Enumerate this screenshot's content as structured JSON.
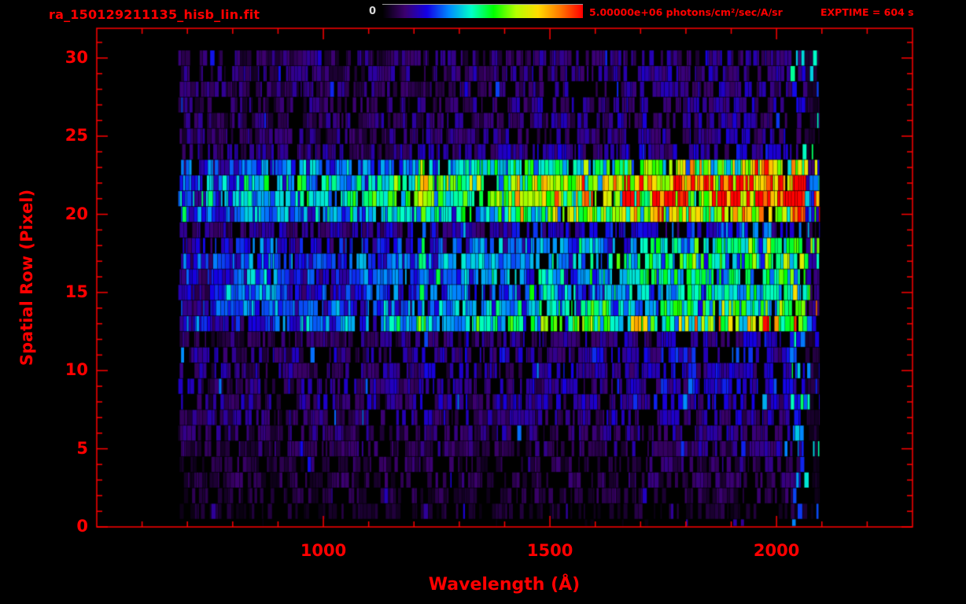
{
  "header": {
    "title": "ra_150129211135_hisb_lin.fit",
    "colorbar_min": "0",
    "colorbar_max": "5.00000e+06 photons/cm²/sec/A/sr",
    "exptime": "EXPTIME = 604 s"
  },
  "colors": {
    "background": "#000000",
    "accent": "#ff0000",
    "colorbar_min_label": "#d8d8d8"
  },
  "chart_data": {
    "type": "heatmap",
    "title": "ra_150129211135_hisb_lin.fit",
    "xlabel": "Wavelength (Å)",
    "ylabel": "Spatial Row (Pixel)",
    "xlim": [
      500,
      2300
    ],
    "ylim": [
      0,
      31.9
    ],
    "x_ticks": [
      1000,
      1500,
      2000
    ],
    "x_minor_step": 100,
    "y_ticks": [
      0,
      5,
      10,
      15,
      20,
      25,
      30
    ],
    "y_minor_step": 1,
    "grid": false,
    "legend": "colorbar-top",
    "colorbar": {
      "min": 0,
      "max": 5000000,
      "units": "photons/cm²/sec/A/sr"
    },
    "exptime_s": 604,
    "data_wavelength_range": [
      680,
      2095
    ],
    "emission_line_wavelength": 1216,
    "bright_edge_wavelength": [
      2030,
      2093
    ],
    "left_blob_center_wavelength": 860,
    "row_profiles": [
      {
        "row": 0,
        "base": 0.01,
        "continuum": 0.0,
        "line": 0.0,
        "blob": 0.0,
        "gap": 0.85
      },
      {
        "row": 1,
        "base": 0.04,
        "continuum": 0.01,
        "line": 0.02,
        "blob": 0.0,
        "gap": 0.55
      },
      {
        "row": 2,
        "base": 0.05,
        "continuum": 0.02,
        "line": 0.03,
        "blob": 0.0,
        "gap": 0.45
      },
      {
        "row": 3,
        "base": 0.06,
        "continuum": 0.03,
        "line": 0.04,
        "blob": 0.0,
        "gap": 0.4
      },
      {
        "row": 4,
        "base": 0.06,
        "continuum": 0.03,
        "line": 0.05,
        "blob": 0.0,
        "gap": 0.4
      },
      {
        "row": 5,
        "base": 0.07,
        "continuum": 0.04,
        "line": 0.06,
        "blob": 0.0,
        "gap": 0.35
      },
      {
        "row": 6,
        "base": 0.08,
        "continuum": 0.05,
        "line": 0.12,
        "blob": 0.0,
        "gap": 0.32
      },
      {
        "row": 7,
        "base": 0.09,
        "continuum": 0.06,
        "line": 0.16,
        "blob": 0.0,
        "gap": 0.3
      },
      {
        "row": 8,
        "base": 0.1,
        "continuum": 0.07,
        "line": 0.18,
        "blob": 0.0,
        "gap": 0.28
      },
      {
        "row": 9,
        "base": 0.1,
        "continuum": 0.08,
        "line": 0.18,
        "blob": 0.0,
        "gap": 0.28
      },
      {
        "row": 10,
        "base": 0.1,
        "continuum": 0.08,
        "line": 0.2,
        "blob": 0.0,
        "gap": 0.28
      },
      {
        "row": 11,
        "base": 0.1,
        "continuum": 0.1,
        "line": 0.2,
        "blob": 0.0,
        "gap": 0.28
      },
      {
        "row": 12,
        "base": 0.08,
        "continuum": 0.08,
        "line": 0.25,
        "blob": 0.05,
        "gap": 0.3
      },
      {
        "row": 13,
        "base": 0.14,
        "continuum": 0.55,
        "line": 0.55,
        "blob": 0.15,
        "gap": 0.08
      },
      {
        "row": 14,
        "base": 0.16,
        "continuum": 0.32,
        "line": 0.6,
        "blob": 0.3,
        "gap": 0.12
      },
      {
        "row": 15,
        "base": 0.14,
        "continuum": 0.26,
        "line": 0.42,
        "blob": 0.3,
        "gap": 0.15
      },
      {
        "row": 16,
        "base": 0.14,
        "continuum": 0.3,
        "line": 0.42,
        "blob": 0.32,
        "gap": 0.15
      },
      {
        "row": 17,
        "base": 0.16,
        "continuum": 0.32,
        "line": 0.46,
        "blob": 0.35,
        "gap": 0.13
      },
      {
        "row": 18,
        "base": 0.14,
        "continuum": 0.27,
        "line": 0.42,
        "blob": 0.25,
        "gap": 0.15
      },
      {
        "row": 19,
        "base": 0.1,
        "continuum": 0.14,
        "line": 0.3,
        "blob": 0.1,
        "gap": 0.25
      },
      {
        "row": 20,
        "base": 0.18,
        "continuum": 0.55,
        "line": 0.6,
        "blob": 0.25,
        "gap": 0.08
      },
      {
        "row": 21,
        "base": 0.2,
        "continuum": 0.72,
        "line": 0.65,
        "blob": 0.25,
        "gap": 0.06
      },
      {
        "row": 22,
        "base": 0.2,
        "continuum": 0.68,
        "line": 0.7,
        "blob": 0.28,
        "gap": 0.06
      },
      {
        "row": 23,
        "base": 0.16,
        "continuum": 0.45,
        "line": 0.6,
        "blob": 0.25,
        "gap": 0.1
      },
      {
        "row": 24,
        "base": 0.09,
        "continuum": 0.08,
        "line": 0.15,
        "blob": 0.0,
        "gap": 0.3
      },
      {
        "row": 25,
        "base": 0.08,
        "continuum": 0.06,
        "line": 0.06,
        "blob": 0.0,
        "gap": 0.32
      },
      {
        "row": 26,
        "base": 0.08,
        "continuum": 0.06,
        "line": 0.05,
        "blob": 0.0,
        "gap": 0.32
      },
      {
        "row": 27,
        "base": 0.08,
        "continuum": 0.06,
        "line": 0.04,
        "blob": 0.0,
        "gap": 0.34
      },
      {
        "row": 28,
        "base": 0.08,
        "continuum": 0.05,
        "line": 0.03,
        "blob": 0.0,
        "gap": 0.34
      },
      {
        "row": 29,
        "base": 0.09,
        "continuum": 0.05,
        "line": 0.03,
        "blob": 0.0,
        "gap": 0.3
      },
      {
        "row": 30,
        "base": 0.08,
        "continuum": 0.04,
        "line": 0.02,
        "blob": 0.0,
        "gap": 0.32
      }
    ]
  }
}
